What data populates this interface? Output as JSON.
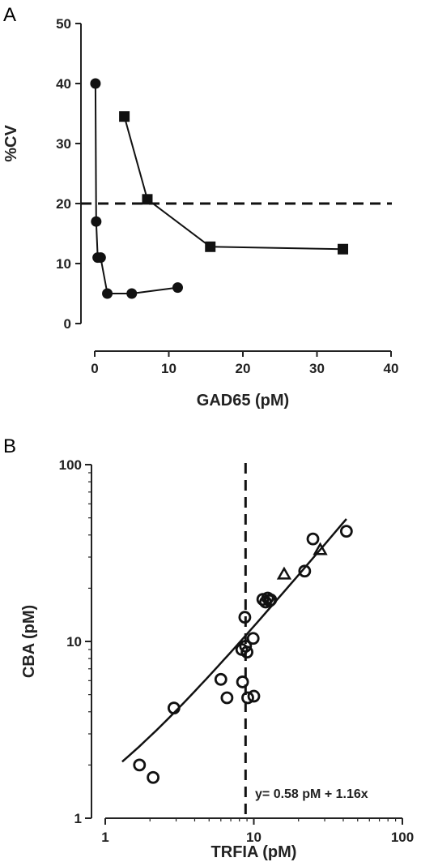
{
  "chart_data": [
    {
      "panel": "A",
      "type": "line",
      "xlabel": "GAD65 (pM)",
      "ylabel": "%CV",
      "xlim": [
        0,
        40
      ],
      "ylim": [
        0,
        50
      ],
      "xticks": [
        0,
        10,
        20,
        30,
        40
      ],
      "yticks": [
        0,
        10,
        20,
        30,
        40,
        50
      ],
      "series": [
        {
          "marker": "circle",
          "x": [
            0.1,
            0.2,
            0.4,
            0.8,
            1.7,
            5.0,
            11.2
          ],
          "y": [
            40,
            17,
            11,
            11,
            5,
            5,
            6
          ]
        },
        {
          "marker": "square",
          "x": [
            4.0,
            7.1,
            15.6,
            33.5
          ],
          "y": [
            34.5,
            20.7,
            12.8,
            12.4
          ]
        }
      ],
      "reference_line": {
        "orientation": "horizontal",
        "y": 20,
        "style": "dashed"
      }
    },
    {
      "panel": "B",
      "type": "scatter",
      "xlabel": "TRFIA (pM)",
      "ylabel": "CBA (pM)",
      "xscale": "log",
      "yscale": "log",
      "xlim": [
        1,
        100
      ],
      "ylim": [
        1,
        100
      ],
      "xticks": [
        1,
        10,
        100
      ],
      "yticks": [
        1,
        10,
        100
      ],
      "series": [
        {
          "marker": "open-circle",
          "x": [
            1.7,
            2.1,
            2.9,
            6.0,
            6.6,
            8.3,
            8.4,
            8.7,
            8.8,
            9.0,
            9.1,
            9.9,
            10.0,
            11.5,
            12.0,
            12.4,
            12.8,
            13.0,
            22.0,
            25.0,
            42.0
          ],
          "y": [
            2.0,
            1.7,
            4.2,
            6.1,
            4.8,
            9.0,
            5.9,
            13.7,
            9.4,
            8.7,
            4.8,
            10.4,
            4.9,
            17.3,
            16.7,
            17.6,
            17.0,
            17.2,
            25.0,
            38.0,
            42.0
          ]
        },
        {
          "marker": "open-triangle",
          "x": [
            16.0,
            28.0
          ],
          "y": [
            24.0,
            33.0
          ]
        }
      ],
      "fit_line": {
        "intercept": 0.58,
        "slope": 1.16,
        "x_range": [
          1.3,
          42
        ]
      },
      "reference_line": {
        "orientation": "vertical",
        "x": 8.8,
        "style": "dashed"
      },
      "annotation": "y= 0.58 pM + 1.16x"
    }
  ],
  "labels": {
    "panel_a": "A",
    "panel_b": "B"
  }
}
